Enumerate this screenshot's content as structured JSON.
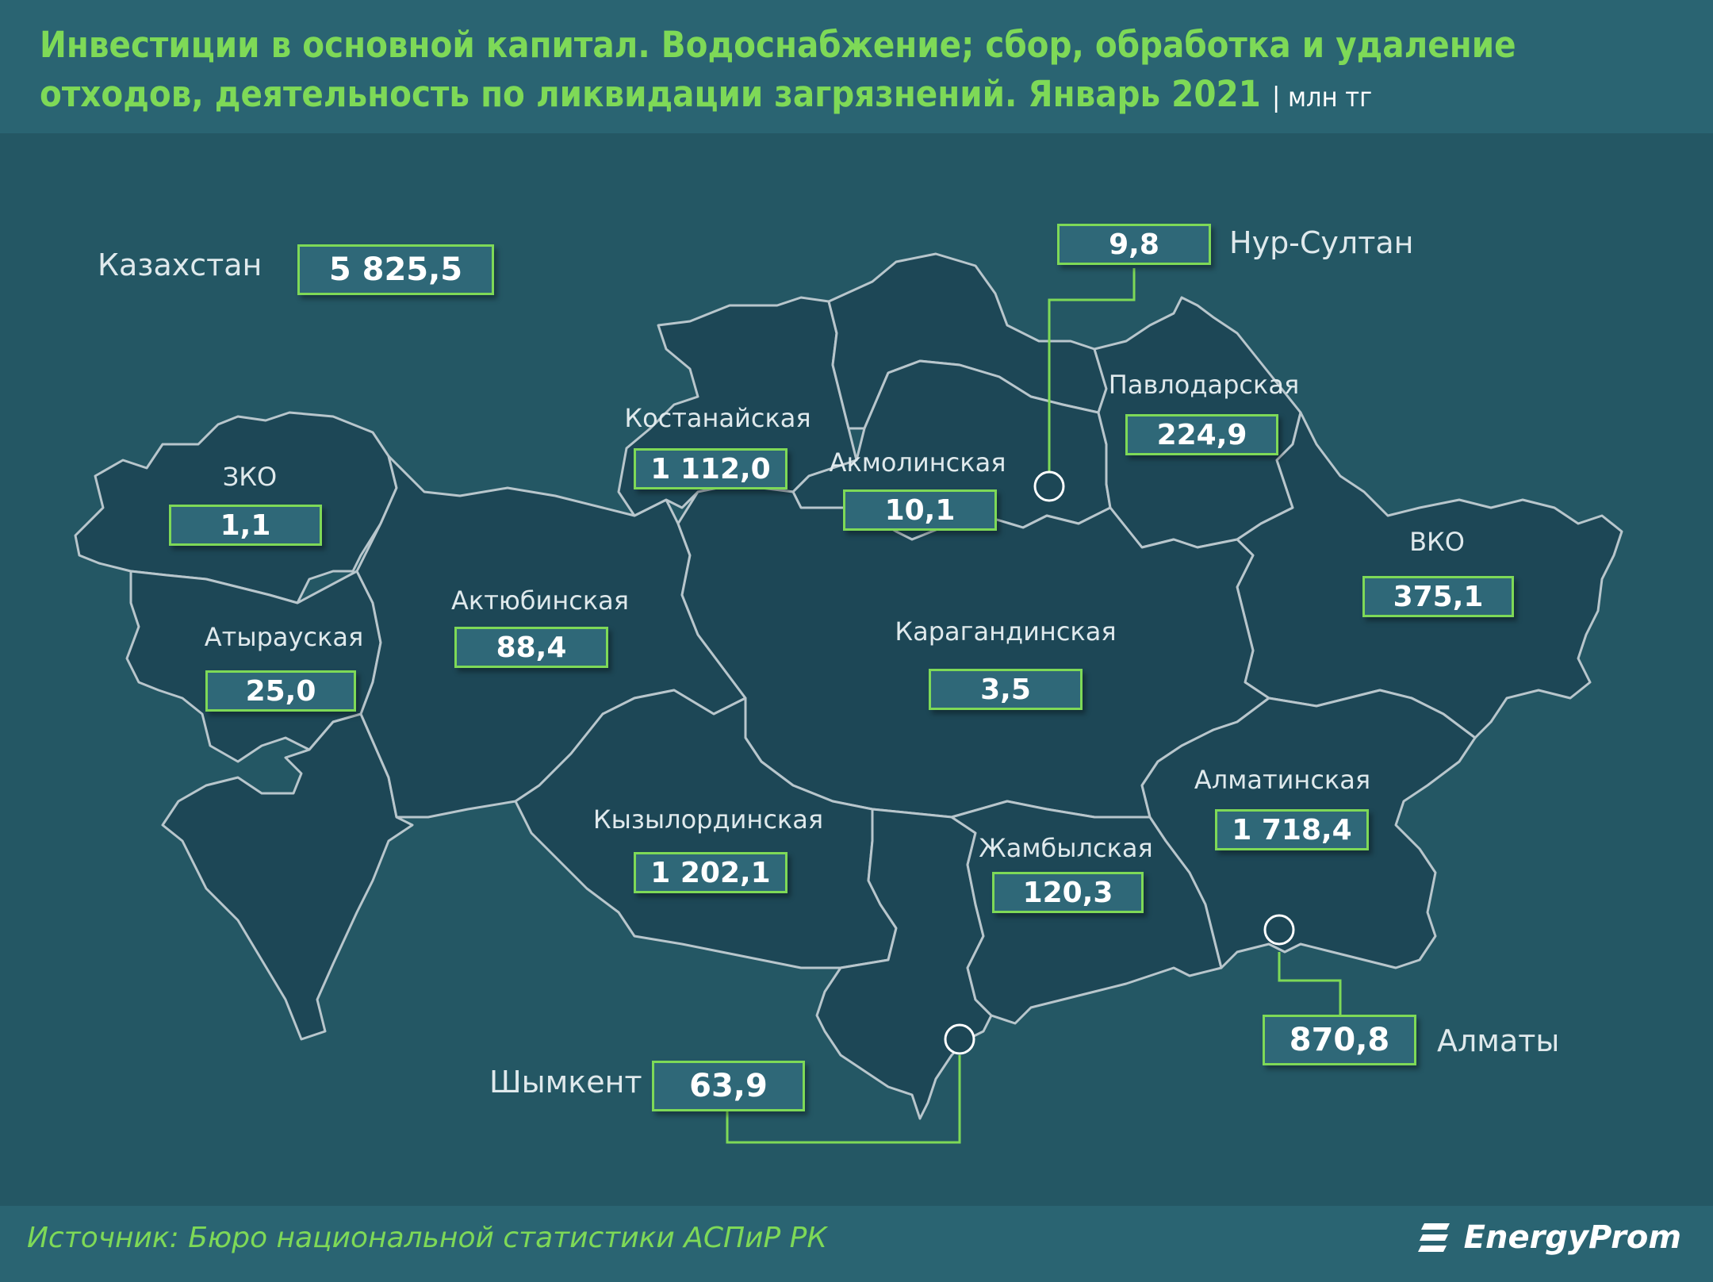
{
  "title": {
    "text": "Инвестиции в основной капитал. Водоснабжение; сбор, обработка и удаление отходов, деятельность по ликвидации загрязнений. Январь 2021",
    "unit": "| млн тг"
  },
  "total": {
    "label": "Казахстан",
    "value": "5 825,5"
  },
  "regions": {
    "zko": {
      "name": "ЗКО",
      "value": "1,1"
    },
    "atyrau": {
      "name": "Атырауская",
      "value": "25,0"
    },
    "aktobe": {
      "name": "Актюбинская",
      "value": "88,4"
    },
    "kostanay": {
      "name": "Костанайская",
      "value": "1 112,0"
    },
    "akmola": {
      "name": "Акмолинская",
      "value": "10,1"
    },
    "pavlodar": {
      "name": "Павлодарская",
      "value": "224,9"
    },
    "vko": {
      "name": "ВКО",
      "value": "375,1"
    },
    "karaganda": {
      "name": "Карагандинская",
      "value": "3,5"
    },
    "kyzylorda": {
      "name": "Кызылординская",
      "value": "1 202,1"
    },
    "zhambyl": {
      "name": "Жамбылская",
      "value": "120,3"
    },
    "almaty_reg": {
      "name": "Алматинская",
      "value": "1 718,4"
    }
  },
  "cities": {
    "nur_sultan": {
      "name": "Нур-Султан",
      "value": "9,8"
    },
    "shymkent": {
      "name": "Шымкент",
      "value": "63,9"
    },
    "almaty": {
      "name": "Алматы",
      "value": "870,8"
    }
  },
  "colors": {
    "background": "#245764",
    "region_fill": "#1d4756",
    "region_border": "#b8c6cc",
    "accent_green": "#7ed957",
    "value_box": "#2f6878"
  },
  "source": "Источник: Бюро национальной  статистики АСПиР РК",
  "brand": "EnergyProm",
  "brand_icon": "energyprom-logo"
}
